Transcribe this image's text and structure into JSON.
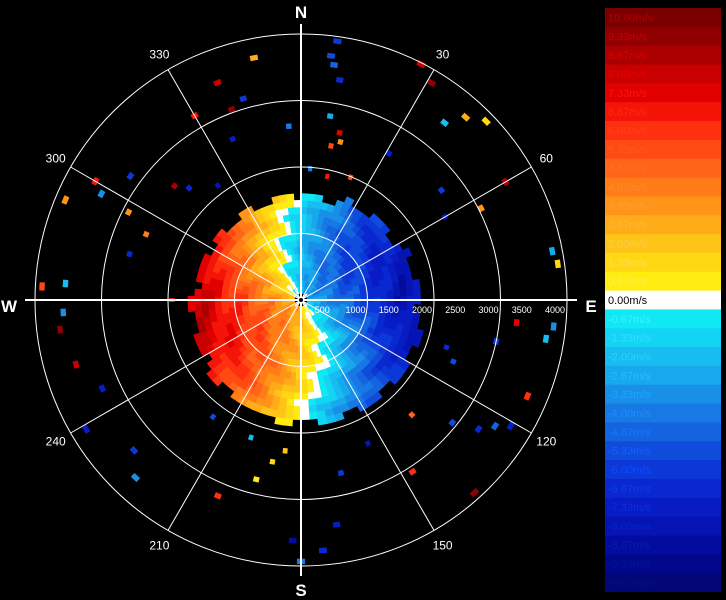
{
  "chart_data": {
    "type": "polar-heatmap",
    "title": "",
    "center_marker": "star-icon",
    "compass_labels": {
      "north": "N",
      "east": "E",
      "south": "S",
      "west": "W"
    },
    "azimuth_labels": [
      "30",
      "60",
      "120",
      "150",
      "210",
      "240",
      "300",
      "330"
    ],
    "azimuth_label_degrees": [
      30,
      60,
      120,
      150,
      210,
      240,
      300,
      330
    ],
    "range_labels": [
      "500",
      "1000",
      "1500",
      "2000",
      "2500",
      "3000",
      "3500",
      "4000"
    ],
    "range_values": [
      500,
      1000,
      1500,
      2000,
      2500,
      3000,
      3500,
      4000
    ],
    "range_max": 4000,
    "ring_ranges": [
      1000,
      2000,
      3000,
      4000
    ],
    "spoke_degrees": [
      0,
      30,
      60,
      90,
      120,
      150,
      180,
      210,
      240,
      270,
      300,
      330
    ],
    "velocity_unit": "m/s",
    "velocity_range": [
      -10,
      10
    ],
    "colorbar": [
      {
        "label": "10.00m/s",
        "color": "#7a0000",
        "text": "#b00000"
      },
      {
        "label": "9.33m/s",
        "color": "#900000",
        "text": "#c40000"
      },
      {
        "label": "8.67m/s",
        "color": "#aa0000",
        "text": "#d80000"
      },
      {
        "label": "8.00m/s",
        "color": "#c80000",
        "text": "#e80000"
      },
      {
        "label": "7.33m/s",
        "color": "#e00000",
        "text": "#ff1010"
      },
      {
        "label": "6.67m/s",
        "color": "#f41408",
        "text": "#ff2a10"
      },
      {
        "label": "6.00m/s",
        "color": "#ff3010",
        "text": "#ff4018"
      },
      {
        "label": "5.33m/s",
        "color": "#ff4a14",
        "text": "#ff5820"
      },
      {
        "label": "4.67m/s",
        "color": "#ff6418",
        "text": "#ff7020"
      },
      {
        "label": "4.00m/s",
        "color": "#ff7c18",
        "text": "#ff8828"
      },
      {
        "label": "3.33m/s",
        "color": "#ff9418",
        "text": "#ffa030"
      },
      {
        "label": "2.67m/s",
        "color": "#ffac18",
        "text": "#ffb838"
      },
      {
        "label": "2.00m/s",
        "color": "#ffc418",
        "text": "#ffcc40"
      },
      {
        "label": "1.33m/s",
        "color": "#ffd814",
        "text": "#ffe048"
      },
      {
        "label": "0.67m/s",
        "color": "#ffec10",
        "text": "#fff050"
      },
      {
        "label": "0.00m/s",
        "color": "#ffffff",
        "text": "#ffffff"
      },
      {
        "label": "-0.67m/s",
        "color": "#10e8f4",
        "text": "#40f0ff"
      },
      {
        "label": "-1.33m/s",
        "color": "#14d4f4",
        "text": "#30e0ff"
      },
      {
        "label": "-2.00m/s",
        "color": "#18bcf0",
        "text": "#28d0ff"
      },
      {
        "label": "-2.67m/s",
        "color": "#18a8ec",
        "text": "#20c0ff"
      },
      {
        "label": "-3.33m/s",
        "color": "#1890e8",
        "text": "#18a8ff"
      },
      {
        "label": "-4.00m/s",
        "color": "#1878e4",
        "text": "#1890ff"
      },
      {
        "label": "-4.67m/s",
        "color": "#1464e0",
        "text": "#1478ff"
      },
      {
        "label": "-5.33m/s",
        "color": "#104cdc",
        "text": "#1060ff"
      },
      {
        "label": "-6.00m/s",
        "color": "#0c38d8",
        "text": "#0c4cff"
      },
      {
        "label": "-6.67m/s",
        "color": "#0a28d0",
        "text": "#0a3cf0"
      },
      {
        "label": "-7.33m/s",
        "color": "#081cc4",
        "text": "#0830e0"
      },
      {
        "label": "-8.00m/s",
        "color": "#0614b4",
        "text": "#0624c8"
      },
      {
        "label": "-8.67m/s",
        "color": "#040ca0",
        "text": "#041cb0"
      },
      {
        "label": "-9.33m/s",
        "color": "#02088c",
        "text": "#021498"
      },
      {
        "label": "-10.00m/s",
        "color": "#020676",
        "text": "#021080"
      }
    ],
    "sparse_echoes": [
      {
        "az": 8,
        "range": 3930,
        "v": -6.0
      },
      {
        "az": 7,
        "range": 3700,
        "v": -5.3
      },
      {
        "az": 8,
        "range": 3570,
        "v": -4.7
      },
      {
        "az": 10,
        "range": 3360,
        "v": -6.7
      },
      {
        "az": 9,
        "range": 2800,
        "v": -2.7
      },
      {
        "az": 11,
        "range": 2360,
        "v": 5.3
      },
      {
        "az": 14,
        "range": 2450,
        "v": 3.3
      },
      {
        "az": 13,
        "range": 2580,
        "v": 7.3
      },
      {
        "az": 4,
        "range": 1980,
        "v": -4.0
      },
      {
        "az": 12,
        "range": 1900,
        "v": 6.7
      },
      {
        "az": 22,
        "range": 1990,
        "v": 5.3
      },
      {
        "az": 27,
        "range": 3980,
        "v": 8.0
      },
      {
        "az": 31,
        "range": 3810,
        "v": 9.3
      },
      {
        "az": 39,
        "range": 3430,
        "v": -2.0
      },
      {
        "az": 42,
        "range": 3700,
        "v": 2.7
      },
      {
        "az": 46,
        "range": 3870,
        "v": 1.3
      },
      {
        "az": 31,
        "range": 2570,
        "v": -7.3
      },
      {
        "az": 52,
        "range": 2680,
        "v": -6.0
      },
      {
        "az": 60,
        "range": 2500,
        "v": -8.0
      },
      {
        "az": 63,
        "range": 3040,
        "v": 3.3
      },
      {
        "az": 60,
        "range": 3550,
        "v": 8.7
      },
      {
        "az": 79,
        "range": 3850,
        "v": -2.7
      },
      {
        "az": 82,
        "range": 3900,
        "v": 1.3
      },
      {
        "az": 96,
        "range": 3820,
        "v": -3.3
      },
      {
        "az": 99,
        "range": 3730,
        "v": -2.0
      },
      {
        "az": 96,
        "range": 3260,
        "v": 7.3
      },
      {
        "az": 102,
        "range": 3000,
        "v": -6.0
      },
      {
        "az": 108,
        "range": 2300,
        "v": -6.7
      },
      {
        "az": 112,
        "range": 2470,
        "v": -5.3
      },
      {
        "az": 113,
        "range": 3700,
        "v": 6.0
      },
      {
        "az": 121,
        "range": 3680,
        "v": -7.3
      },
      {
        "az": 123,
        "range": 3480,
        "v": -4.7
      },
      {
        "az": 126,
        "range": 3300,
        "v": -6.7
      },
      {
        "az": 129,
        "range": 2930,
        "v": -5.3
      },
      {
        "az": 136,
        "range": 2400,
        "v": 4.7
      },
      {
        "az": 138,
        "range": 3900,
        "v": 9.3
      },
      {
        "az": 147,
        "range": 3080,
        "v": 6.0
      },
      {
        "az": 155,
        "range": 2380,
        "v": -8.0
      },
      {
        "az": 167,
        "range": 2670,
        "v": -6.0
      },
      {
        "az": 171,
        "range": 3420,
        "v": -7.3
      },
      {
        "az": 175,
        "range": 3780,
        "v": -6.7
      },
      {
        "az": 180,
        "range": 3930,
        "v": -4.0
      },
      {
        "az": 182,
        "range": 3620,
        "v": -8.7
      },
      {
        "az": 186,
        "range": 2280,
        "v": 2.0
      },
      {
        "az": 190,
        "range": 2470,
        "v": 1.3
      },
      {
        "az": 194,
        "range": 2780,
        "v": 0.7
      },
      {
        "az": 200,
        "range": 2200,
        "v": -2.0
      },
      {
        "az": 203,
        "range": 3200,
        "v": 6.0
      },
      {
        "az": 217,
        "range": 2200,
        "v": -5.3
      },
      {
        "az": 223,
        "range": 3650,
        "v": -3.3
      },
      {
        "az": 228,
        "range": 3380,
        "v": -6.0
      },
      {
        "az": 239,
        "range": 3770,
        "v": -7.3
      },
      {
        "az": 246,
        "range": 3270,
        "v": -7.3
      },
      {
        "az": 254,
        "range": 3520,
        "v": 8.0
      },
      {
        "az": 263,
        "range": 3650,
        "v": 9.3
      },
      {
        "az": 267,
        "range": 3580,
        "v": -3.3
      },
      {
        "az": 274,
        "range": 3550,
        "v": -2.0
      },
      {
        "az": 273,
        "range": 3900,
        "v": 5.3
      },
      {
        "az": 270,
        "range": 1940,
        "v": 6.7
      },
      {
        "az": 285,
        "range": 2670,
        "v": -6.7
      },
      {
        "az": 293,
        "range": 2530,
        "v": 4.0
      },
      {
        "az": 297,
        "range": 2910,
        "v": 3.3
      },
      {
        "az": 298,
        "range": 3400,
        "v": -3.3
      },
      {
        "az": 293,
        "range": 3850,
        "v": 3.3
      },
      {
        "az": 300,
        "range": 3570,
        "v": 6.7
      },
      {
        "az": 306,
        "range": 3170,
        "v": -6.0
      },
      {
        "az": 312,
        "range": 2560,
        "v": 8.7
      },
      {
        "az": 315,
        "range": 2380,
        "v": -6.7
      },
      {
        "az": 324,
        "range": 2130,
        "v": -8.0
      },
      {
        "az": 330,
        "range": 3200,
        "v": 6.7
      },
      {
        "az": 339,
        "range": 3500,
        "v": 8.0
      },
      {
        "az": 340,
        "range": 3050,
        "v": 9.3
      },
      {
        "az": 344,
        "range": 3150,
        "v": -6.0
      },
      {
        "az": 349,
        "range": 3710,
        "v": 2.7
      },
      {
        "az": 337,
        "range": 2630,
        "v": -7.3
      },
      {
        "az": 356,
        "range": 2620,
        "v": -4.0
      }
    ]
  }
}
